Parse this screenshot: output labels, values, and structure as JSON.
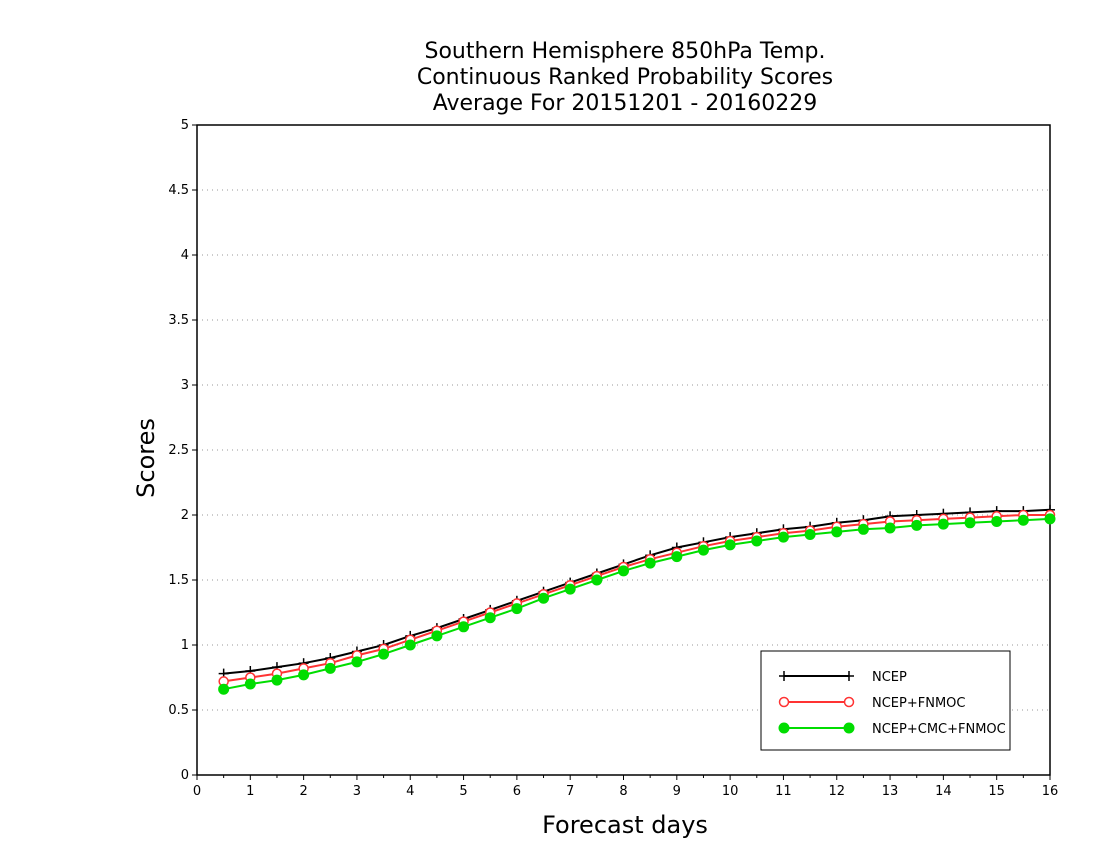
{
  "chart_data": {
    "type": "line",
    "title_lines": [
      "Southern Hemisphere 850hPa Temp.",
      "Continuous Ranked Probability Scores",
      "Average For 20151201 - 20160229"
    ],
    "xlabel": "Forecast days",
    "ylabel": "Scores",
    "xlim": [
      0,
      16
    ],
    "ylim": [
      0,
      5
    ],
    "xticks": [
      0,
      1,
      2,
      3,
      4,
      5,
      6,
      7,
      8,
      9,
      10,
      11,
      12,
      13,
      14,
      15,
      16
    ],
    "xtick_labels": [
      "0",
      "1",
      "2",
      "3",
      "4",
      "5",
      "6",
      "7",
      "8",
      "9",
      "10",
      "11",
      "12",
      "13",
      "14",
      "15",
      "16"
    ],
    "yticks": [
      0,
      0.5,
      1,
      1.5,
      2,
      2.5,
      3,
      3.5,
      4,
      4.5,
      5
    ],
    "ytick_labels": [
      "0",
      "0.5",
      "1",
      "1.5",
      "2",
      "2.5",
      "3",
      "3.5",
      "4",
      "4.5",
      "5"
    ],
    "grid": "dotted horizontal",
    "legend_position": "bottom-right",
    "x": [
      0.5,
      1,
      1.5,
      2,
      2.5,
      3,
      3.5,
      4,
      4.5,
      5,
      5.5,
      6,
      6.5,
      7,
      7.5,
      8,
      8.5,
      9,
      9.5,
      10,
      10.5,
      11,
      11.5,
      12,
      12.5,
      13,
      13.5,
      14,
      14.5,
      15,
      15.5,
      16
    ],
    "series": [
      {
        "name": "NCEP",
        "color": "#000000",
        "marker": "plus",
        "values": [
          0.78,
          0.8,
          0.83,
          0.86,
          0.9,
          0.95,
          1.0,
          1.07,
          1.13,
          1.2,
          1.27,
          1.34,
          1.41,
          1.48,
          1.55,
          1.62,
          1.69,
          1.75,
          1.79,
          1.83,
          1.86,
          1.89,
          1.91,
          1.94,
          1.96,
          1.99,
          2.0,
          2.01,
          2.02,
          2.03,
          2.03,
          2.04
        ]
      },
      {
        "name": "NCEP+FNMOC",
        "color": "#ff3333",
        "marker": "open-circle",
        "values": [
          0.72,
          0.75,
          0.78,
          0.82,
          0.86,
          0.92,
          0.97,
          1.04,
          1.11,
          1.18,
          1.25,
          1.32,
          1.39,
          1.46,
          1.53,
          1.6,
          1.66,
          1.71,
          1.76,
          1.8,
          1.83,
          1.86,
          1.88,
          1.91,
          1.93,
          1.95,
          1.96,
          1.97,
          1.98,
          1.99,
          2.0,
          2.0
        ]
      },
      {
        "name": "NCEP+CMC+FNMOC",
        "color": "#00dd00",
        "marker": "filled-circle",
        "values": [
          0.66,
          0.7,
          0.73,
          0.77,
          0.82,
          0.87,
          0.93,
          1.0,
          1.07,
          1.14,
          1.21,
          1.28,
          1.36,
          1.43,
          1.5,
          1.57,
          1.63,
          1.68,
          1.73,
          1.77,
          1.8,
          1.83,
          1.85,
          1.87,
          1.89,
          1.9,
          1.92,
          1.93,
          1.94,
          1.95,
          1.96,
          1.97
        ]
      }
    ]
  }
}
